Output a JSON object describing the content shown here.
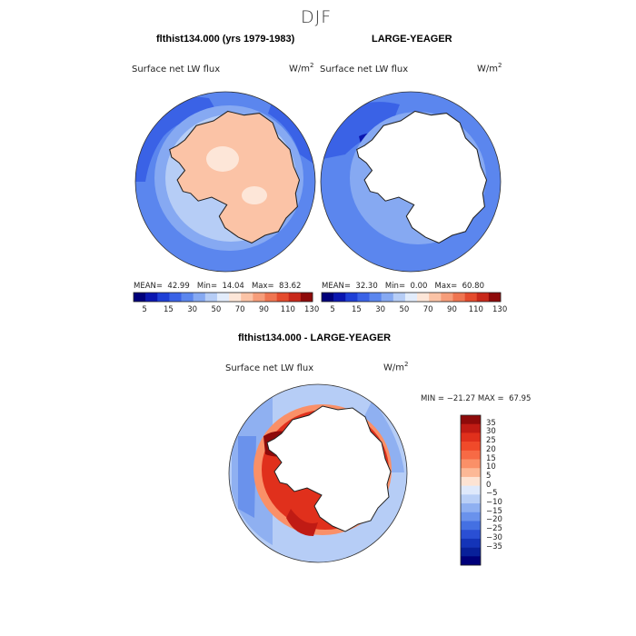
{
  "title": "DJF",
  "panels": [
    {
      "title": "flthist134.000 (yrs 1979-1983)",
      "variable": "Surface net LW flux",
      "units_base": "W/m",
      "units_exp": "2",
      "mean_label": "MEAN=",
      "mean": "42.99",
      "min_label": "Min=",
      "min": "14.04",
      "max_label": "Max=",
      "max": "83.62"
    },
    {
      "title": "LARGE-YEAGER",
      "variable": "Surface net LW flux",
      "units_base": "W/m",
      "units_exp": "2",
      "mean_label": "MEAN=",
      "mean": "32.30",
      "min_label": "Min=",
      "min": "0.00",
      "max_label": "Max=",
      "max": "60.80"
    },
    {
      "title": "flthist134.000 - LARGE-YEAGER",
      "variable": "Surface net LW flux",
      "units_base": "W/m",
      "units_exp": "2",
      "minmax_text": "MIN = −21.27 MAX =  67.95"
    }
  ],
  "colorbar_top": {
    "ticks": [
      "5",
      "15",
      "30",
      "50",
      "70",
      "90",
      "110",
      "130"
    ],
    "colors": [
      "#00007a",
      "#0a16b0",
      "#1e3fd6",
      "#3a62e6",
      "#5b86ee",
      "#86a9f2",
      "#b6cdf6",
      "#e2ecfb",
      "#fde6d8",
      "#fbc3a6",
      "#f69d7a",
      "#ef7551",
      "#e44b2d",
      "#c8281a",
      "#8e0a0a"
    ]
  },
  "colorbar_diff": {
    "ticks": [
      "35",
      "30",
      "25",
      "20",
      "15",
      "10",
      "5",
      "0",
      "−5",
      "−10",
      "−15",
      "−20",
      "−25",
      "−30",
      "−35"
    ],
    "colors": [
      "#8e0a0a",
      "#c01b14",
      "#e0301c",
      "#f04a2a",
      "#f76a45",
      "#fa9068",
      "#fcb896",
      "#fde3d3",
      "#dfe9fb",
      "#b9cff6",
      "#8fb0f1",
      "#6a92ec",
      "#4470e2",
      "#2a4fd4",
      "#1434b8",
      "#08209a",
      "#00007a"
    ]
  },
  "map_colors": {
    "ocean_deep": "#3a62e6",
    "ocean_mid": "#5b86ee",
    "ocean_light": "#86a9f2",
    "ice_light": "#b6cdf6",
    "land_pale": "#fbc3a6",
    "land_mid": "#fde6d8",
    "land_white": "#ffffff",
    "diff_red": "#e0301c",
    "diff_dark": "#8e0a0a"
  }
}
